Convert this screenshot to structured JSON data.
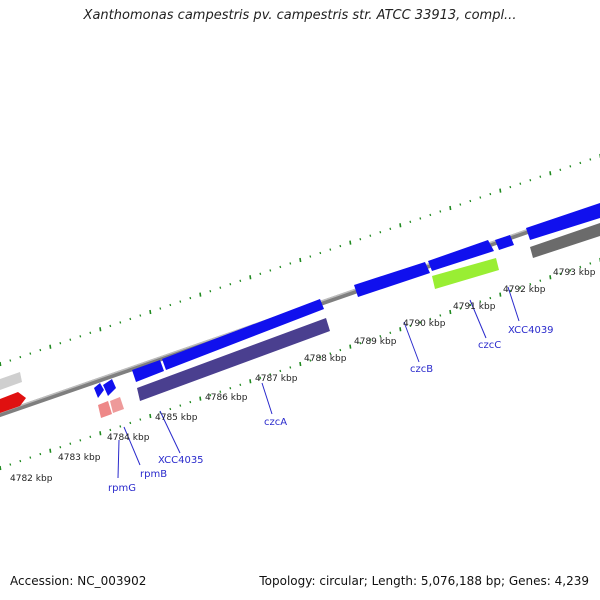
{
  "title": "Xanthomonas campestris pv. campestris str. ATCC 33913, compl...",
  "accession_label": "Accession: NC_003902",
  "topology_label": "Topology: circular; Length: 5,076,188 bp; Genes: 4,239",
  "colors": {
    "backbone": "#8f8f8f",
    "forward_cds": "#1010ee",
    "reverse_cds": "#4a3f8f",
    "highlight": "#99ee33",
    "rna": "#ee8888",
    "other": "#d23030",
    "pseudo": "#cfcfcf",
    "tick": "#1f8a1f",
    "label": "#2a2acc"
  },
  "kbp_ticks": [
    "4782 kbp",
    "4783 kbp",
    "4784 kbp",
    "4785 kbp",
    "4786 kbp",
    "4787 kbp",
    "4788 kbp",
    "4789 kbp",
    "4790 kbp",
    "4791 kbp",
    "4792 kbp",
    "4793 kbp"
  ],
  "gene_labels": [
    "rpmG",
    "rpmB",
    "XCC4035",
    "czcA",
    "czcB",
    "czcC",
    "XCC4039"
  ]
}
